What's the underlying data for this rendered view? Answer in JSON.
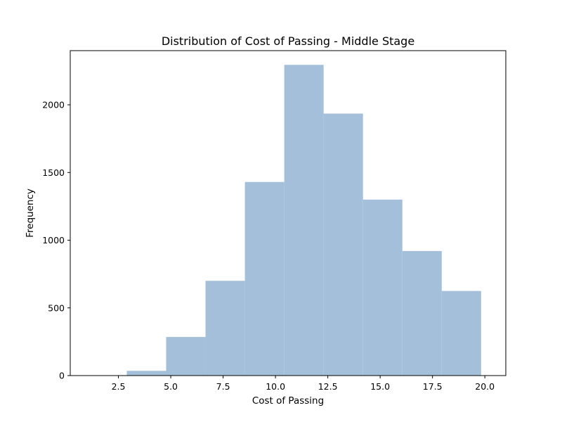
{
  "chart_data": {
    "type": "bar",
    "title": "Distribution of Cost of Passing - Middle Stage",
    "xlabel": "Cost of Passing",
    "ylabel": "Frequency",
    "bin_edges": [
      2.9,
      4.78,
      6.66,
      8.54,
      10.42,
      12.3,
      14.18,
      16.06,
      17.94,
      19.82,
      21.7
    ],
    "values": [
      35,
      285,
      700,
      1430,
      2295,
      1935,
      1300,
      920,
      625,
      0
    ],
    "xlim": [
      0.2,
      21.0
    ],
    "ylim": [
      0,
      2400
    ],
    "xticks": [
      2.5,
      5.0,
      7.5,
      10.0,
      12.5,
      15.0,
      17.5,
      20.0
    ],
    "xtick_labels": [
      "2.5",
      "5.0",
      "7.5",
      "10.0",
      "12.5",
      "15.0",
      "17.5",
      "20.0"
    ],
    "yticks": [
      0,
      500,
      1000,
      1500,
      2000
    ],
    "ytick_labels": [
      "0",
      "500",
      "1000",
      "1500",
      "2000"
    ],
    "bar_color": "#a3bfd9",
    "grid": false
  }
}
